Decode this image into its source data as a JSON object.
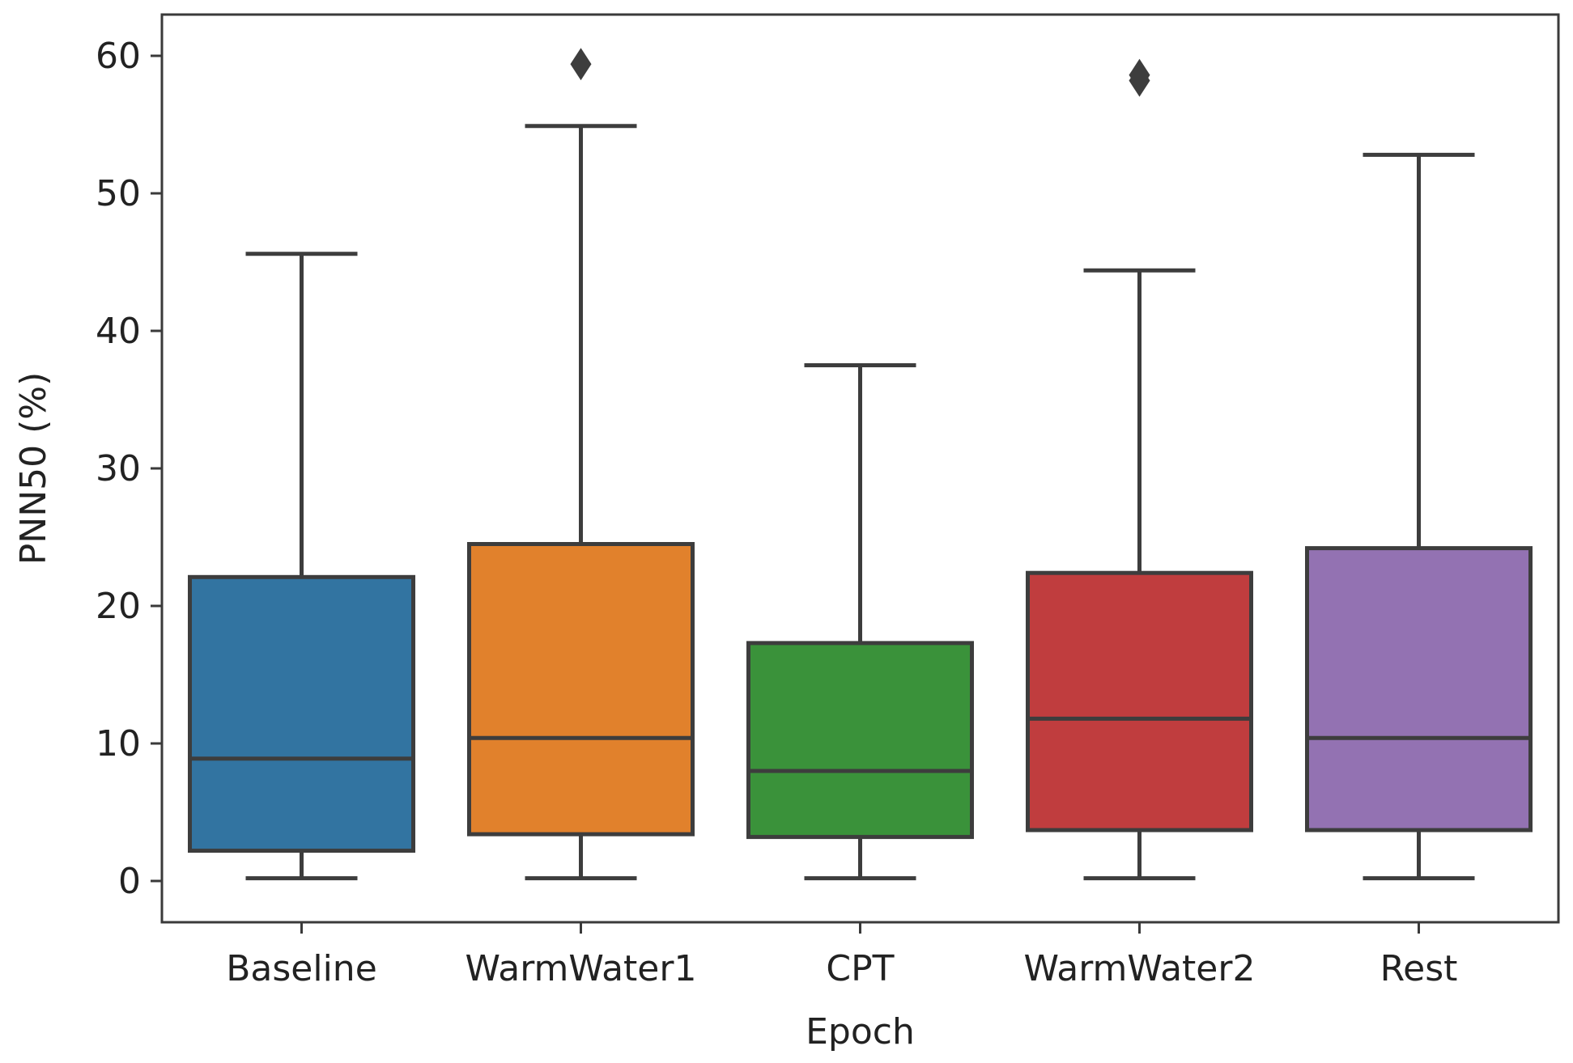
{
  "chart_data": {
    "type": "box",
    "title": "",
    "xlabel": "Epoch",
    "ylabel": "PNN50 (%)",
    "ylim": [
      -3,
      63
    ],
    "yticks": [
      0,
      10,
      20,
      30,
      40,
      50,
      60
    ],
    "categories": [
      "Baseline",
      "WarmWater1",
      "CPT",
      "WarmWater2",
      "Rest"
    ],
    "boxes": [
      {
        "category": "Baseline",
        "color": "#3274a1",
        "whisker_low": 0.2,
        "q1": 2.2,
        "median": 8.9,
        "q3": 22.1,
        "whisker_high": 45.6,
        "outliers": []
      },
      {
        "category": "WarmWater1",
        "color": "#e1812c",
        "whisker_low": 0.2,
        "q1": 3.4,
        "median": 10.4,
        "q3": 24.5,
        "whisker_high": 54.9,
        "outliers": [
          59.4
        ]
      },
      {
        "category": "CPT",
        "color": "#3a923a",
        "whisker_low": 0.2,
        "q1": 3.2,
        "median": 8.0,
        "q3": 17.3,
        "whisker_high": 37.5,
        "outliers": []
      },
      {
        "category": "WarmWater2",
        "color": "#c03d3e",
        "whisker_low": 0.2,
        "q1": 3.7,
        "median": 11.8,
        "q3": 22.4,
        "whisker_high": 44.4,
        "outliers": [
          58.2,
          58.6
        ]
      },
      {
        "category": "Rest",
        "color": "#9372b2",
        "whisker_low": 0.2,
        "q1": 3.7,
        "median": 10.4,
        "q3": 24.2,
        "whisker_high": 52.8,
        "outliers": []
      }
    ]
  }
}
